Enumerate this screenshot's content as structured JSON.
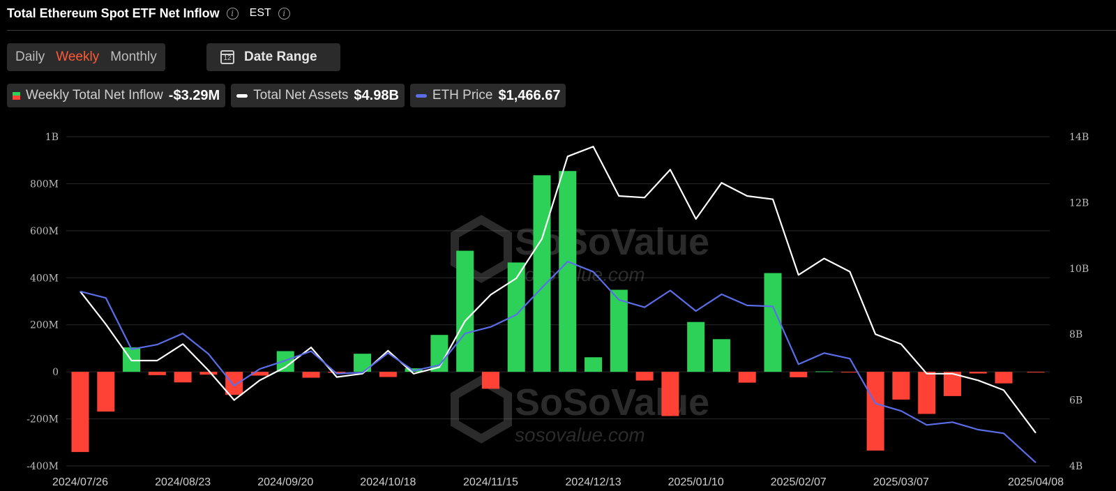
{
  "header": {
    "title": "Total Ethereum Spot ETF Net Inflow",
    "timezone": "EST"
  },
  "period_tabs": [
    {
      "label": "Daily",
      "active": false
    },
    {
      "label": "Weekly",
      "active": true
    },
    {
      "label": "Monthly",
      "active": false
    }
  ],
  "date_range": {
    "label": "Date Range",
    "icon": "calendar-icon",
    "icon_text": "12"
  },
  "legend": [
    {
      "label": "Weekly Total Net Inflow",
      "value": "-$3.29M",
      "swatch": "bar"
    },
    {
      "label": "Total Net Assets",
      "value": "$4.98B",
      "swatch": "line",
      "color": "#ffffff"
    },
    {
      "label": "ETH Price",
      "value": "$1,466.67",
      "swatch": "line",
      "color": "#5b6ee8"
    }
  ],
  "watermark": {
    "brand": "SoSoValue",
    "site": "sosovalue.com"
  },
  "colors": {
    "positive": "#2ed158",
    "negative": "#ff4136",
    "assets_line": "#ffffff",
    "price_line": "#5b6ee8",
    "grid": "#2a2a2a"
  },
  "chart_data": {
    "type": "bar",
    "x": [
      "2024/07/26",
      "2024/08/02",
      "2024/08/09",
      "2024/08/16",
      "2024/08/23",
      "2024/08/30",
      "2024/09/06",
      "2024/09/13",
      "2024/09/20",
      "2024/09/27",
      "2024/10/04",
      "2024/10/11",
      "2024/10/18",
      "2024/10/25",
      "2024/11/01",
      "2024/11/08",
      "2024/11/15",
      "2024/11/22",
      "2024/11/29",
      "2024/12/06",
      "2024/12/13",
      "2024/12/20",
      "2024/12/27",
      "2025/01/03",
      "2025/01/10",
      "2025/01/17",
      "2025/01/24",
      "2025/01/31",
      "2025/02/07",
      "2025/02/14",
      "2025/02/21",
      "2025/02/28",
      "2025/03/07",
      "2025/03/14",
      "2025/03/21",
      "2025/03/28",
      "2025/04/04",
      "2025/04/08"
    ],
    "x_tick_labels": [
      "2024/07/26",
      "2024/08/23",
      "2024/09/20",
      "2024/10/18",
      "2024/11/15",
      "2024/12/13",
      "2025/01/10",
      "2025/02/07",
      "2025/03/07",
      "2025/04/08"
    ],
    "y_left": {
      "ticks": [
        "1B",
        "800M",
        "600M",
        "400M",
        "200M",
        "0",
        "-200M",
        "-400M"
      ],
      "range": [
        -400,
        1000
      ],
      "unit": "M"
    },
    "y_right": {
      "ticks": [
        "14B",
        "12B",
        "10B",
        "8B",
        "6B",
        "4B"
      ],
      "range": [
        4,
        14
      ],
      "unit": "B"
    },
    "series": [
      {
        "name": "Weekly Total Net Inflow",
        "type": "bar",
        "axis": "left",
        "values": [
          -341,
          -169,
          104,
          -14,
          -45,
          -12,
          -98,
          -16,
          88,
          -25,
          -4,
          77,
          -22,
          15,
          157,
          515,
          -72,
          465,
          836,
          854,
          62,
          349,
          -37,
          -188,
          212,
          139,
          -46,
          420,
          -23,
          2,
          -3,
          -335,
          -118,
          -179,
          -103,
          -7,
          -49,
          -3
        ]
      },
      {
        "name": "Total Net Assets",
        "type": "line",
        "axis": "right",
        "values": [
          9.3,
          8.3,
          7.2,
          7.2,
          7.7,
          6.9,
          6.0,
          6.6,
          7.0,
          7.6,
          6.7,
          6.8,
          7.5,
          6.8,
          7.0,
          8.4,
          9.2,
          9.7,
          10.9,
          13.4,
          13.7,
          12.2,
          12.15,
          13.0,
          11.5,
          12.6,
          12.2,
          12.1,
          9.8,
          10.3,
          9.9,
          8.0,
          7.7,
          6.8,
          6.8,
          6.6,
          6.3,
          5.0
        ]
      },
      {
        "name": "ETH Price",
        "type": "line",
        "axis": "right",
        "values": [
          3300,
          3230,
          2680,
          2730,
          2850,
          2630,
          2290,
          2470,
          2560,
          2660,
          2420,
          2430,
          2640,
          2450,
          2510,
          2850,
          2920,
          3050,
          3340,
          3620,
          3510,
          3210,
          3130,
          3310,
          3090,
          3270,
          3150,
          3140,
          2520,
          2640,
          2580,
          2100,
          2020,
          1870,
          1900,
          1820,
          1780,
          1466.67
        ]
      }
    ],
    "eth_price_scale_note": "",
    "legend_position": "top-left",
    "grid": true
  }
}
